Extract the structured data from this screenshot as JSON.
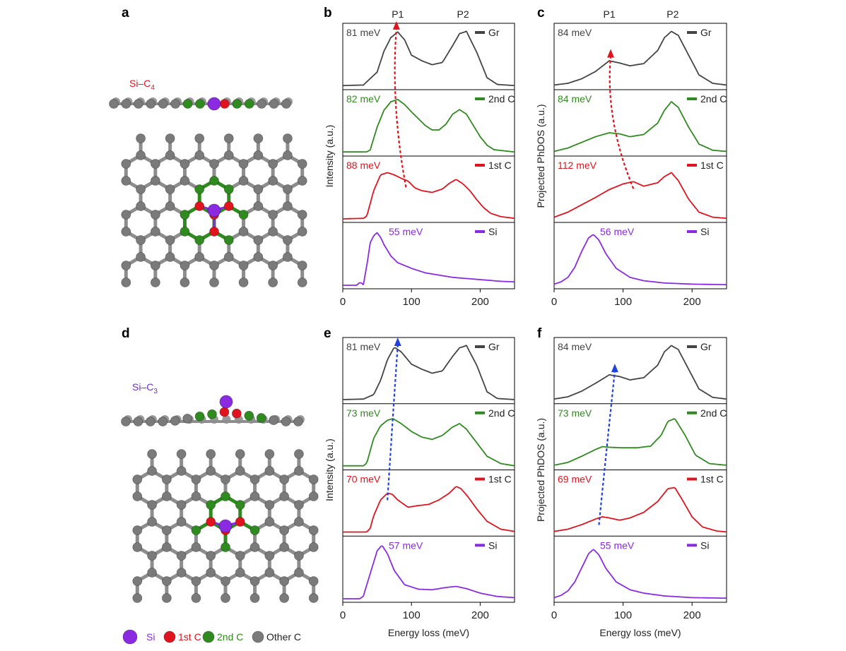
{
  "figure": {
    "panels": [
      "a",
      "b",
      "c",
      "d",
      "e",
      "f"
    ]
  },
  "structures": [
    {
      "panel": "a",
      "label": "Si–C",
      "subscript": "4",
      "label_color": "#e0141e",
      "type": "planar"
    },
    {
      "panel": "d",
      "label": "Si–C",
      "subscript": "3",
      "label_color": "#6a2fd6",
      "type": "buckled"
    }
  ],
  "legend": {
    "items": [
      {
        "name": "Si",
        "color": "#8a2be2"
      },
      {
        "name": "1st C",
        "color": "#e0141e"
      },
      {
        "name": "2nd C",
        "color": "#2f8a1f"
      },
      {
        "name": "Other C",
        "color": "#7a7a7a"
      }
    ]
  },
  "colors": {
    "Gr": "#444444",
    "2nd C": "#2f8a1f",
    "1st C": "#e0141e",
    "Si": "#8a2be2",
    "arrow_top": "#e0141e",
    "arrow_bottom": "#2040e0"
  },
  "chart_data": [
    {
      "panel": "b",
      "type": "line",
      "ylabel": "Intensity (a.u.)",
      "xlabel": "",
      "xlim": [
        0,
        250
      ],
      "xticks": [
        0,
        100,
        200
      ],
      "peak_labels": [
        {
          "text": "P1",
          "x": 80
        },
        {
          "text": "P2",
          "x": 175
        }
      ],
      "arrow": {
        "color": "red",
        "from": {
          "series": "1st C",
          "x": 92
        },
        "to": {
          "series": "Gr",
          "x": 78
        }
      },
      "series": [
        {
          "name": "Gr",
          "annotation": "81 meV",
          "x": [
            0,
            30,
            50,
            60,
            70,
            80,
            90,
            100,
            115,
            130,
            145,
            160,
            170,
            180,
            195,
            210,
            225,
            250
          ],
          "y": [
            0.01,
            0.02,
            0.25,
            0.62,
            0.86,
            0.96,
            0.82,
            0.55,
            0.45,
            0.38,
            0.42,
            0.72,
            0.93,
            0.97,
            0.6,
            0.15,
            0.03,
            0.01
          ]
        },
        {
          "name": "2nd C",
          "annotation": "82 meV",
          "x": [
            0,
            35,
            40,
            50,
            60,
            70,
            80,
            90,
            100,
            110,
            120,
            130,
            140,
            150,
            160,
            170,
            180,
            190,
            200,
            210,
            220,
            250
          ],
          "y": [
            0.01,
            0.01,
            0.05,
            0.45,
            0.75,
            0.9,
            0.94,
            0.85,
            0.72,
            0.6,
            0.48,
            0.4,
            0.4,
            0.5,
            0.68,
            0.76,
            0.68,
            0.48,
            0.28,
            0.13,
            0.05,
            0.01
          ]
        },
        {
          "name": "1st C",
          "annotation": "88 meV",
          "x": [
            0,
            30,
            35,
            45,
            55,
            65,
            75,
            85,
            95,
            105,
            115,
            130,
            145,
            155,
            165,
            175,
            185,
            195,
            205,
            215,
            230,
            250
          ],
          "y": [
            0.0,
            0.01,
            0.05,
            0.5,
            0.78,
            0.82,
            0.78,
            0.72,
            0.67,
            0.55,
            0.5,
            0.47,
            0.53,
            0.63,
            0.7,
            0.62,
            0.5,
            0.34,
            0.2,
            0.1,
            0.04,
            0.01
          ]
        },
        {
          "name": "Si",
          "annotation": "55 meV",
          "x": [
            0,
            20,
            25,
            30,
            35,
            40,
            45,
            50,
            55,
            60,
            70,
            80,
            100,
            120,
            140,
            160,
            180,
            200,
            230,
            250
          ],
          "y": [
            0.0,
            0.0,
            0.05,
            0.02,
            0.35,
            0.75,
            0.88,
            0.93,
            0.85,
            0.72,
            0.52,
            0.4,
            0.3,
            0.22,
            0.18,
            0.14,
            0.12,
            0.1,
            0.07,
            0.06
          ]
        }
      ]
    },
    {
      "panel": "c",
      "type": "line",
      "ylabel": "Projected PhDOS (a.u.)",
      "xlabel": "",
      "xlim": [
        0,
        250
      ],
      "xticks": [
        0,
        100,
        200
      ],
      "peak_labels": [
        {
          "text": "P1",
          "x": 80
        },
        {
          "text": "P2",
          "x": 172
        }
      ],
      "arrow": {
        "color": "red",
        "from": {
          "series": "1st C",
          "x": 115
        },
        "to": {
          "series": "Gr",
          "x": 82
        }
      },
      "series": [
        {
          "name": "Gr",
          "annotation": "84 meV",
          "x": [
            0,
            20,
            40,
            60,
            80,
            95,
            110,
            130,
            150,
            160,
            170,
            180,
            195,
            210,
            230,
            250
          ],
          "y": [
            0.02,
            0.05,
            0.13,
            0.26,
            0.45,
            0.41,
            0.36,
            0.4,
            0.63,
            0.86,
            0.97,
            0.9,
            0.55,
            0.2,
            0.05,
            0.02
          ]
        },
        {
          "name": "2nd C",
          "annotation": "84 meV",
          "x": [
            0,
            20,
            40,
            60,
            80,
            95,
            110,
            130,
            150,
            160,
            170,
            180,
            195,
            210,
            230,
            250
          ],
          "y": [
            0.02,
            0.08,
            0.18,
            0.28,
            0.35,
            0.33,
            0.28,
            0.32,
            0.52,
            0.75,
            0.9,
            0.8,
            0.45,
            0.15,
            0.04,
            0.02
          ]
        },
        {
          "name": "1st C",
          "annotation": "112 meV",
          "x": [
            0,
            20,
            40,
            60,
            80,
            100,
            115,
            130,
            150,
            160,
            170,
            180,
            195,
            210,
            230,
            250
          ],
          "y": [
            0.03,
            0.12,
            0.25,
            0.38,
            0.52,
            0.62,
            0.66,
            0.58,
            0.64,
            0.75,
            0.82,
            0.68,
            0.35,
            0.12,
            0.03,
            0.01
          ]
        },
        {
          "name": "Si",
          "annotation": "56 meV",
          "x": [
            0,
            10,
            20,
            30,
            40,
            50,
            57,
            65,
            75,
            90,
            110,
            130,
            160,
            200,
            250
          ],
          "y": [
            0.02,
            0.06,
            0.14,
            0.32,
            0.6,
            0.84,
            0.9,
            0.8,
            0.56,
            0.3,
            0.14,
            0.08,
            0.04,
            0.02,
            0.01
          ]
        }
      ]
    },
    {
      "panel": "e",
      "type": "line",
      "ylabel": "Intensity (a.u.)",
      "xlabel": "Energy loss (meV)",
      "xlim": [
        0,
        250
      ],
      "xticks": [
        0,
        100,
        200
      ],
      "peak_labels": [],
      "arrow": {
        "color": "blue",
        "from": {
          "series": "1st C",
          "x": 65
        },
        "to": {
          "series": "Gr",
          "x": 80
        }
      },
      "series": [
        {
          "name": "Gr",
          "annotation": "81 meV",
          "x": [
            0,
            30,
            45,
            55,
            65,
            75,
            85,
            100,
            115,
            130,
            145,
            160,
            170,
            180,
            195,
            210,
            225,
            250
          ],
          "y": [
            0.01,
            0.02,
            0.1,
            0.35,
            0.72,
            0.94,
            0.86,
            0.64,
            0.55,
            0.48,
            0.52,
            0.78,
            0.93,
            0.97,
            0.62,
            0.15,
            0.03,
            0.01
          ]
        },
        {
          "name": "2nd C",
          "annotation": "73 meV",
          "x": [
            0,
            30,
            35,
            45,
            55,
            65,
            73,
            85,
            100,
            115,
            130,
            145,
            160,
            170,
            180,
            195,
            210,
            230,
            250
          ],
          "y": [
            0.01,
            0.01,
            0.06,
            0.5,
            0.72,
            0.82,
            0.85,
            0.76,
            0.62,
            0.52,
            0.48,
            0.55,
            0.7,
            0.76,
            0.66,
            0.42,
            0.18,
            0.05,
            0.01
          ]
        },
        {
          "name": "1st C",
          "annotation": "70 meV",
          "x": [
            0,
            35,
            40,
            45,
            55,
            65,
            72,
            80,
            95,
            110,
            125,
            140,
            155,
            165,
            172,
            182,
            195,
            210,
            230,
            250
          ],
          "y": [
            0.01,
            0.01,
            0.08,
            0.3,
            0.58,
            0.7,
            0.68,
            0.58,
            0.45,
            0.48,
            0.5,
            0.58,
            0.7,
            0.82,
            0.78,
            0.64,
            0.42,
            0.2,
            0.06,
            0.02
          ]
        },
        {
          "name": "Si",
          "annotation": "57 meV",
          "x": [
            0,
            25,
            30,
            40,
            50,
            57,
            65,
            75,
            90,
            110,
            130,
            150,
            165,
            180,
            200,
            225,
            250
          ],
          "y": [
            0.0,
            0.0,
            0.05,
            0.45,
            0.85,
            0.95,
            0.8,
            0.5,
            0.25,
            0.17,
            0.16,
            0.2,
            0.22,
            0.18,
            0.1,
            0.04,
            0.02
          ]
        }
      ]
    },
    {
      "panel": "f",
      "type": "line",
      "ylabel": "Projected PhDOS (a.u.)",
      "xlabel": "Energy loss (meV)",
      "xlim": [
        0,
        250
      ],
      "xticks": [
        0,
        100,
        200
      ],
      "peak_labels": [],
      "arrow": {
        "color": "blue",
        "from": {
          "series": "1st C",
          "x": 65
        },
        "to": {
          "series": "Gr",
          "x": 88
        }
      },
      "series": [
        {
          "name": "Gr",
          "annotation": "84 meV",
          "x": [
            0,
            20,
            40,
            60,
            80,
            95,
            110,
            130,
            150,
            160,
            170,
            180,
            195,
            210,
            230,
            250
          ],
          "y": [
            0.02,
            0.06,
            0.16,
            0.3,
            0.45,
            0.42,
            0.36,
            0.4,
            0.62,
            0.86,
            0.97,
            0.9,
            0.55,
            0.2,
            0.05,
            0.02
          ]
        },
        {
          "name": "2nd C",
          "annotation": "73 meV",
          "x": [
            0,
            20,
            40,
            60,
            70,
            80,
            100,
            120,
            140,
            155,
            165,
            175,
            190,
            205,
            225,
            250
          ],
          "y": [
            0.02,
            0.07,
            0.18,
            0.3,
            0.35,
            0.34,
            0.33,
            0.33,
            0.36,
            0.55,
            0.8,
            0.85,
            0.55,
            0.2,
            0.05,
            0.02
          ]
        },
        {
          "name": "1st C",
          "annotation": "69 meV",
          "x": [
            0,
            20,
            40,
            60,
            70,
            80,
            95,
            110,
            130,
            150,
            165,
            175,
            185,
            200,
            215,
            235,
            250
          ],
          "y": [
            0.02,
            0.06,
            0.14,
            0.24,
            0.28,
            0.26,
            0.22,
            0.26,
            0.36,
            0.55,
            0.78,
            0.8,
            0.6,
            0.28,
            0.1,
            0.03,
            0.01
          ]
        },
        {
          "name": "Si",
          "annotation": "55 meV",
          "x": [
            0,
            10,
            20,
            30,
            40,
            50,
            57,
            65,
            75,
            90,
            110,
            130,
            160,
            200,
            250
          ],
          "y": [
            0.02,
            0.06,
            0.14,
            0.3,
            0.55,
            0.8,
            0.88,
            0.78,
            0.54,
            0.3,
            0.16,
            0.1,
            0.05,
            0.02,
            0.01
          ]
        }
      ]
    }
  ]
}
